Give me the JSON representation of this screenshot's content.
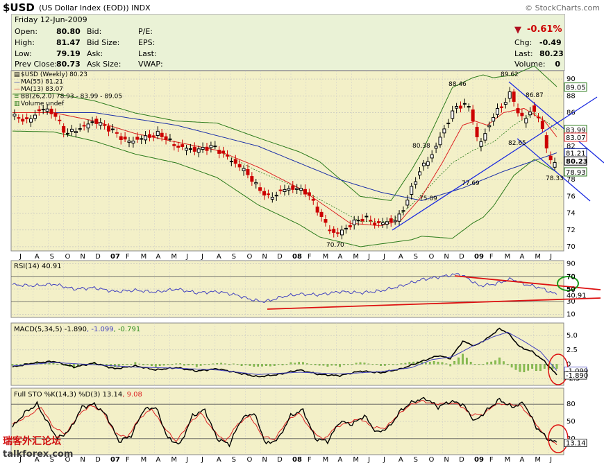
{
  "header": {
    "symbol": "$USD",
    "description": "(US Dollar Index (EOD))",
    "exchange": "INDX",
    "brand": "© StockCharts.com"
  },
  "quote": {
    "date": "Friday 12-Jun-2009",
    "open_label": "Open:",
    "open": "80.80",
    "high_label": "High:",
    "high": "81.47",
    "low_label": "Low:",
    "low": "79.19",
    "prev_close_label": "Prev Close:",
    "prev_close": "80.73",
    "bid_label": "Bid:",
    "bid_size_label": "Bid Size:",
    "ask_label": "Ask:",
    "ask_size_label": "Ask Size:",
    "pe_label": "P/E:",
    "eps_label": "EPS:",
    "last_label": "Last:",
    "vwap_label": "VWAP:",
    "change_pct": "-0.61%",
    "chg_label": "Chg:",
    "chg": "-0.49",
    "last_label2": "Last:",
    "last": "80.23",
    "volume_label": "Volume:",
    "volume": "0"
  },
  "legend": {
    "price": "$USD (Weekly) 80.23",
    "ma55": "MA(55) 81.21",
    "ma13": "MA(13) 83.07",
    "bb": "BB(26,2.0) 78.93 - 83.99 - 89.05",
    "volume": "Volume undef"
  },
  "colors": {
    "panel_bg": "#f3f0c8",
    "up_candle": "#000000",
    "down_candle": "#cc0000",
    "ma55": "#1a2fa8",
    "ma13": "#dd2222",
    "bollinger": "#2a7a1a",
    "trendline_blue": "#1a2ae0",
    "trendline_red": "#dd1111"
  },
  "chart_data": [
    {
      "type": "line",
      "name": "price",
      "ylim": [
        69.5,
        91
      ],
      "y_ticks": [
        70,
        72,
        74,
        76,
        78,
        80,
        82,
        84,
        86,
        88,
        90
      ],
      "x_labels": [
        "J",
        "A",
        "S",
        "O",
        "N",
        "D",
        "07",
        "F",
        "M",
        "A",
        "M",
        "J",
        "J",
        "A",
        "S",
        "O",
        "N",
        "D",
        "08",
        "F",
        "M",
        "A",
        "M",
        "J",
        "J",
        "A",
        "S",
        "O",
        "N",
        "D",
        "09",
        "F",
        "M",
        "A",
        "M",
        "J"
      ],
      "price_annotations": [
        "89.62",
        "88.46",
        "86.87",
        "82.65",
        "80.38",
        "77.69",
        "78.33",
        "75.89",
        "70.70"
      ],
      "right_labels": [
        "89.05",
        "83.99",
        "83.07",
        "81.21",
        "80.23",
        "78.93"
      ],
      "y_axis_labels": [
        "90",
        "88",
        "86",
        "84",
        "82",
        "80",
        "78",
        "76",
        "74",
        "72",
        "70"
      ],
      "close_anchors": [
        [
          0,
          85.6
        ],
        [
          8,
          85.0
        ],
        [
          14,
          86.5
        ],
        [
          20,
          86.0
        ],
        [
          26,
          83.5
        ],
        [
          32,
          84.0
        ],
        [
          40,
          85.0
        ],
        [
          48,
          84.0
        ],
        [
          56,
          82.5
        ],
        [
          64,
          83.0
        ],
        [
          72,
          83.5
        ],
        [
          80,
          82.0
        ],
        [
          90,
          81.5
        ],
        [
          98,
          82.0
        ],
        [
          106,
          80.5
        ],
        [
          114,
          79.0
        ],
        [
          120,
          77.0
        ],
        [
          126,
          75.8
        ],
        [
          132,
          76.8
        ],
        [
          138,
          77.0
        ],
        [
          144,
          76.5
        ],
        [
          150,
          74.0
        ],
        [
          154,
          72.3
        ],
        [
          158,
          71.5
        ],
        [
          162,
          72.0
        ],
        [
          166,
          72.8
        ],
        [
          172,
          73.5
        ],
        [
          178,
          72.7
        ],
        [
          184,
          73.0
        ],
        [
          188,
          73.2
        ],
        [
          192,
          75.0
        ],
        [
          196,
          77.5
        ],
        [
          200,
          79.5
        ],
        [
          204,
          80.5
        ],
        [
          208,
          82.5
        ],
        [
          212,
          84.5
        ],
        [
          216,
          86.5
        ],
        [
          220,
          87.0
        ],
        [
          224,
          86.5
        ],
        [
          226,
          84.0
        ],
        [
          228,
          82.0
        ],
        [
          232,
          84.0
        ],
        [
          236,
          86.0
        ],
        [
          240,
          87.0
        ],
        [
          244,
          88.5
        ],
        [
          246,
          86.5
        ],
        [
          250,
          85.0
        ],
        [
          254,
          86.5
        ],
        [
          258,
          85.0
        ],
        [
          260,
          83.0
        ],
        [
          262,
          81.0
        ],
        [
          264,
          79.5
        ],
        [
          266,
          80.2
        ]
      ],
      "ma55_anchors": [
        [
          0,
          86.0
        ],
        [
          40,
          86.0
        ],
        [
          80,
          84.5
        ],
        [
          120,
          82.0
        ],
        [
          160,
          78.0
        ],
        [
          180,
          76.5
        ],
        [
          200,
          75.5
        ],
        [
          220,
          77.0
        ],
        [
          240,
          79.0
        ],
        [
          266,
          81.2
        ]
      ],
      "ma13_anchors": [
        [
          0,
          86.0
        ],
        [
          20,
          86.0
        ],
        [
          40,
          85.0
        ],
        [
          60,
          83.5
        ],
        [
          80,
          82.5
        ],
        [
          100,
          81.5
        ],
        [
          120,
          79.5
        ],
        [
          140,
          77.0
        ],
        [
          155,
          74.5
        ],
        [
          165,
          72.8
        ],
        [
          180,
          72.5
        ],
        [
          190,
          73.2
        ],
        [
          200,
          76.0
        ],
        [
          210,
          80.0
        ],
        [
          220,
          84.5
        ],
        [
          226,
          85.0
        ],
        [
          232,
          84.5
        ],
        [
          240,
          86.0
        ],
        [
          250,
          86.5
        ],
        [
          260,
          85.0
        ],
        [
          266,
          83.1
        ]
      ],
      "bb_mid_anchors": [
        [
          0,
          86.0
        ],
        [
          20,
          86.0
        ],
        [
          40,
          85.0
        ],
        [
          60,
          83.5
        ],
        [
          80,
          82.5
        ],
        [
          100,
          81.5
        ],
        [
          120,
          79.0
        ],
        [
          140,
          77.0
        ],
        [
          155,
          75.0
        ],
        [
          170,
          73.0
        ],
        [
          185,
          73.0
        ],
        [
          195,
          75.0
        ],
        [
          205,
          77.5
        ],
        [
          215,
          80.0
        ],
        [
          225,
          81.5
        ],
        [
          235,
          82.5
        ],
        [
          245,
          84.5
        ],
        [
          255,
          86.0
        ],
        [
          266,
          84.0
        ]
      ],
      "bb_width_anchors": [
        [
          0,
          2.2
        ],
        [
          40,
          2.4
        ],
        [
          80,
          2.5
        ],
        [
          120,
          4.0
        ],
        [
          150,
          4.5
        ],
        [
          170,
          3.0
        ],
        [
          185,
          2.5
        ],
        [
          200,
          5.0
        ],
        [
          215,
          9.0
        ],
        [
          230,
          8.5
        ],
        [
          245,
          6.0
        ],
        [
          266,
          5.1
        ]
      ]
    },
    {
      "type": "line",
      "name": "RSI(14)",
      "title": "RSI(14) 40.91",
      "ylim": [
        5,
        95
      ],
      "y_ticks": [
        10,
        30,
        50,
        70,
        90
      ],
      "y_axis_labels": [
        "90",
        "70",
        "50",
        "30",
        "10"
      ],
      "right_labels": [
        "70",
        "50",
        "40.91"
      ],
      "anchors": [
        [
          0,
          57
        ],
        [
          10,
          55
        ],
        [
          20,
          58
        ],
        [
          30,
          50
        ],
        [
          40,
          52
        ],
        [
          50,
          46
        ],
        [
          60,
          48
        ],
        [
          70,
          45
        ],
        [
          80,
          50
        ],
        [
          90,
          44
        ],
        [
          100,
          46
        ],
        [
          110,
          40
        ],
        [
          116,
          34
        ],
        [
          122,
          30
        ],
        [
          126,
          32
        ],
        [
          132,
          38
        ],
        [
          140,
          42
        ],
        [
          150,
          41
        ],
        [
          160,
          46
        ],
        [
          170,
          44
        ],
        [
          180,
          47
        ],
        [
          190,
          55
        ],
        [
          200,
          65
        ],
        [
          210,
          70
        ],
        [
          218,
          74
        ],
        [
          222,
          68
        ],
        [
          228,
          55
        ],
        [
          236,
          58
        ],
        [
          244,
          66
        ],
        [
          250,
          58
        ],
        [
          258,
          52
        ],
        [
          266,
          41
        ]
      ]
    },
    {
      "type": "line",
      "name": "MACD(5,34,5)",
      "title_parts": [
        "MACD(5,34,5) -1.890",
        ", -1.099",
        ", -0.791"
      ],
      "ylim": [
        -3.7,
        7.2
      ],
      "y_ticks": [
        -2.5,
        0,
        2.5,
        5.0
      ],
      "y_axis_labels": [
        "5.0",
        "2.5",
        "0",
        "-2.5"
      ],
      "right_labels": [
        "-1.099",
        "-1.890"
      ],
      "macd_anchors": [
        [
          0,
          -0.5
        ],
        [
          10,
          0.2
        ],
        [
          20,
          0.5
        ],
        [
          30,
          -0.5
        ],
        [
          40,
          0.2
        ],
        [
          50,
          -0.8
        ],
        [
          60,
          -0.3
        ],
        [
          70,
          -1.0
        ],
        [
          80,
          -0.6
        ],
        [
          90,
          -1.2
        ],
        [
          100,
          -0.8
        ],
        [
          110,
          -1.5
        ],
        [
          120,
          -2.2
        ],
        [
          130,
          -1.8
        ],
        [
          140,
          -1.0
        ],
        [
          150,
          -1.8
        ],
        [
          160,
          -2.0
        ],
        [
          170,
          -1.2
        ],
        [
          180,
          -1.5
        ],
        [
          190,
          -0.8
        ],
        [
          200,
          0.5
        ],
        [
          208,
          1.5
        ],
        [
          214,
          1.0
        ],
        [
          220,
          4.0
        ],
        [
          226,
          3.2
        ],
        [
          232,
          4.5
        ],
        [
          238,
          6.2
        ],
        [
          242,
          5.5
        ],
        [
          248,
          3.0
        ],
        [
          254,
          2.2
        ],
        [
          260,
          0.5
        ],
        [
          266,
          -1.9
        ]
      ],
      "signal_anchors": [
        [
          0,
          -0.3
        ],
        [
          20,
          0.3
        ],
        [
          40,
          -0.1
        ],
        [
          60,
          -0.5
        ],
        [
          80,
          -0.7
        ],
        [
          100,
          -1.0
        ],
        [
          120,
          -1.8
        ],
        [
          140,
          -1.4
        ],
        [
          160,
          -1.7
        ],
        [
          180,
          -1.3
        ],
        [
          195,
          -0.6
        ],
        [
          205,
          0.8
        ],
        [
          215,
          1.3
        ],
        [
          225,
          3.2
        ],
        [
          235,
          4.8
        ],
        [
          242,
          5.6
        ],
        [
          250,
          4.0
        ],
        [
          258,
          2.2
        ],
        [
          266,
          -1.1
        ]
      ]
    },
    {
      "type": "line",
      "name": "Full STO %K(14,3) %D(3)",
      "title_parts": [
        "Full STO %K(14,3) %D(3) 13.14",
        ", 9.08"
      ],
      "ylim": [
        -8,
        108
      ],
      "y_ticks": [
        20,
        50,
        80
      ],
      "y_axis_labels": [
        "80",
        "50",
        "20"
      ],
      "right_labels": [
        "13.14"
      ],
      "k_anchors": [
        [
          0,
          40
        ],
        [
          6,
          65
        ],
        [
          12,
          80
        ],
        [
          16,
          55
        ],
        [
          22,
          20
        ],
        [
          28,
          35
        ],
        [
          34,
          75
        ],
        [
          40,
          80
        ],
        [
          46,
          60
        ],
        [
          52,
          15
        ],
        [
          58,
          25
        ],
        [
          64,
          70
        ],
        [
          70,
          75
        ],
        [
          76,
          20
        ],
        [
          82,
          10
        ],
        [
          88,
          60
        ],
        [
          94,
          70
        ],
        [
          100,
          20
        ],
        [
          106,
          10
        ],
        [
          112,
          55
        ],
        [
          118,
          65
        ],
        [
          124,
          10
        ],
        [
          130,
          20
        ],
        [
          136,
          60
        ],
        [
          142,
          70
        ],
        [
          148,
          20
        ],
        [
          154,
          15
        ],
        [
          160,
          50
        ],
        [
          166,
          45
        ],
        [
          172,
          60
        ],
        [
          178,
          30
        ],
        [
          184,
          40
        ],
        [
          190,
          70
        ],
        [
          196,
          85
        ],
        [
          202,
          90
        ],
        [
          208,
          75
        ],
        [
          214,
          85
        ],
        [
          220,
          80
        ],
        [
          226,
          50
        ],
        [
          232,
          70
        ],
        [
          238,
          88
        ],
        [
          244,
          75
        ],
        [
          250,
          82
        ],
        [
          256,
          40
        ],
        [
          262,
          18
        ],
        [
          266,
          13
        ]
      ],
      "d_anchors": [
        [
          0,
          45
        ],
        [
          8,
          60
        ],
        [
          14,
          75
        ],
        [
          20,
          40
        ],
        [
          26,
          28
        ],
        [
          32,
          60
        ],
        [
          38,
          78
        ],
        [
          44,
          68
        ],
        [
          50,
          30
        ],
        [
          56,
          22
        ],
        [
          62,
          55
        ],
        [
          68,
          72
        ],
        [
          74,
          40
        ],
        [
          80,
          15
        ],
        [
          86,
          45
        ],
        [
          92,
          65
        ],
        [
          98,
          35
        ],
        [
          104,
          15
        ],
        [
          110,
          45
        ],
        [
          116,
          60
        ],
        [
          122,
          25
        ],
        [
          128,
          18
        ],
        [
          134,
          50
        ],
        [
          140,
          65
        ],
        [
          146,
          35
        ],
        [
          152,
          18
        ],
        [
          158,
          40
        ],
        [
          164,
          48
        ],
        [
          170,
          55
        ],
        [
          176,
          40
        ],
        [
          182,
          38
        ],
        [
          188,
          60
        ],
        [
          194,
          78
        ],
        [
          200,
          86
        ],
        [
          206,
          80
        ],
        [
          212,
          82
        ],
        [
          218,
          80
        ],
        [
          224,
          62
        ],
        [
          230,
          62
        ],
        [
          236,
          80
        ],
        [
          242,
          80
        ],
        [
          248,
          78
        ],
        [
          254,
          55
        ],
        [
          260,
          25
        ],
        [
          266,
          9
        ]
      ]
    }
  ]
}
